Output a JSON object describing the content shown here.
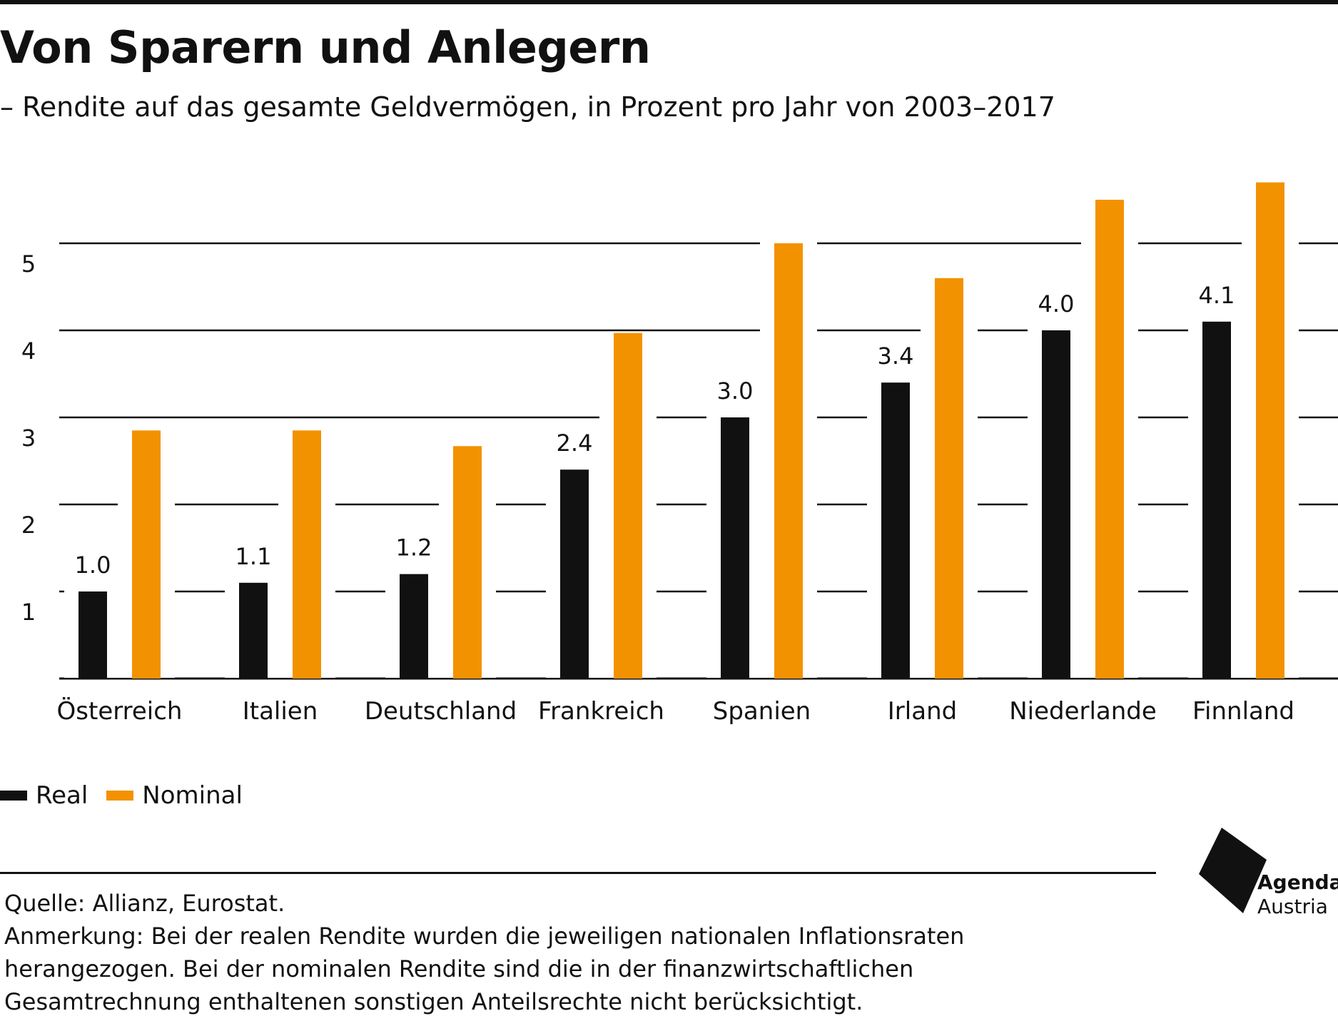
{
  "header": {
    "title": "Von Sparern und Anlegern",
    "subtitle": "– Rendite auf das gesamte Geldvermögen, in Prozent pro Jahr von 2003–2017"
  },
  "chart_data": {
    "type": "bar",
    "title": "Von Sparern und Anlegern",
    "subtitle": "– Rendite auf das gesamte Geldvermögen, in Prozent pro Jahr von 2003–2017",
    "categories": [
      "Österreich",
      "Italien",
      "Deutschland",
      "Frankreich",
      "Spanien",
      "Irland",
      "Niederlande",
      "Finnland"
    ],
    "series": [
      {
        "name": "Real",
        "color": "#111111",
        "values": [
          1.0,
          1.1,
          1.2,
          2.4,
          3.0,
          3.4,
          4.0,
          4.1
        ],
        "labels_shown": true
      },
      {
        "name": "Nominal",
        "color": "#F39200",
        "values": [
          2.85,
          2.85,
          2.67,
          3.97,
          5.0,
          4.6,
          5.5,
          5.7
        ],
        "labels_shown": false
      }
    ],
    "y_ticks": [
      1,
      2,
      3,
      4,
      5
    ],
    "ylim": [
      0,
      5.8
    ],
    "grid": true,
    "legend_position": "bottom-left"
  },
  "legend": {
    "real_label": "Real",
    "nominal_label": "Nominal"
  },
  "footer": {
    "source": "Quelle: Allianz, Eurostat.",
    "note_lines": [
      "Anmerkung: Bei der realen Rendite wurden die jeweiligen nationalen Inflationsraten",
      "herangezogen. Bei der nominalen Rendite sind die in der finanzwirtschaftlichen",
      "Gesamtrechnung enthaltenen sonstigen Anteilsrechte nicht berücksichtigt."
    ]
  },
  "logo": {
    "line1": "Agenda",
    "line2": "Austria"
  }
}
